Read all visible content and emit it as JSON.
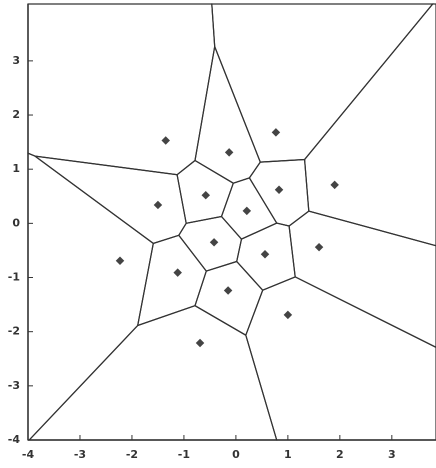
{
  "chart_data": {
    "type": "scatter",
    "x": [
      -1.35,
      0.77,
      -0.13,
      1.9,
      0.83,
      -1.5,
      -0.58,
      0.21,
      -0.42,
      -2.23,
      -1.12,
      0.56,
      1.6,
      -0.15,
      1.0,
      -0.69
    ],
    "values": [
      1.53,
      1.68,
      1.31,
      0.71,
      0.62,
      0.34,
      0.52,
      0.23,
      -0.35,
      -0.69,
      -0.91,
      -0.57,
      -0.44,
      -1.24,
      -1.69,
      -2.21
    ],
    "color": "#444444",
    "xlim": [
      -4,
      3.85
    ],
    "ylim": [
      -4,
      4.05
    ],
    "xticks": [
      -4,
      -3,
      -2,
      -1,
      0,
      1,
      2,
      3
    ],
    "yticks": [
      -4,
      -3,
      -2,
      -1,
      0,
      1,
      2,
      3
    ]
  }
}
